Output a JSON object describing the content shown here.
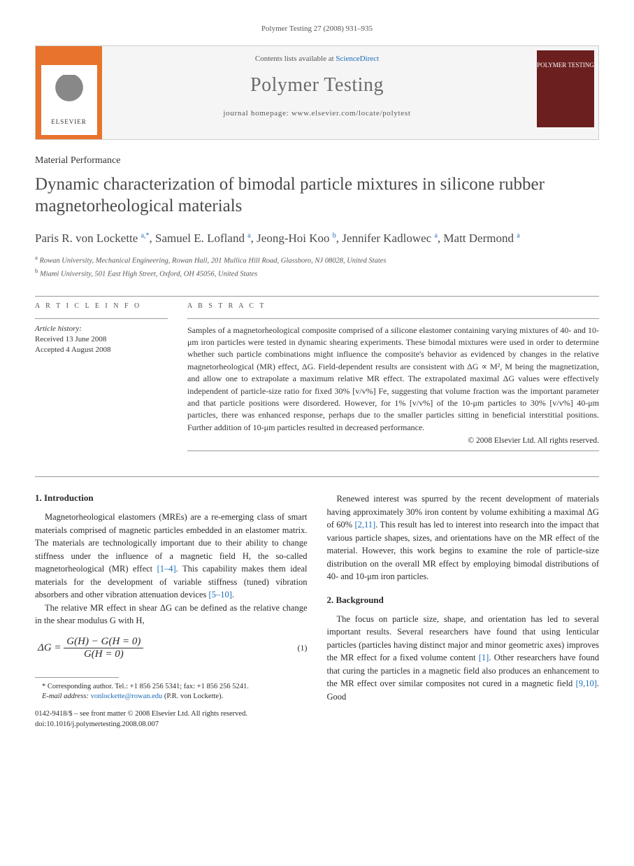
{
  "header": {
    "citation": "Polymer Testing 27 (2008) 931–935"
  },
  "banner": {
    "contents_prefix": "Contents lists available at ",
    "contents_link": "ScienceDirect",
    "journal_name": "Polymer Testing",
    "homepage": "journal homepage: www.elsevier.com/locate/polytest",
    "publisher": "ELSEVIER",
    "cover_text": "POLYMER TESTING"
  },
  "article": {
    "type": "Material Performance",
    "title": "Dynamic characterization of bimodal particle mixtures in silicone rubber magnetorheological materials",
    "authors_html": "Paris R. von Lockette <sup>a,*</sup>, Samuel E. Lofland <sup>a</sup>, Jeong-Hoi Koo <sup>b</sup>, Jennifer Kadlowec <sup>a</sup>, Matt Dermond <sup>a</sup>",
    "affiliations": [
      "a Rowan University, Mechanical Engineering, Rowan Hall, 201 Mullica Hill Road, Glassboro, NJ 08028, United States",
      "b Miami University, 501 East High Street, Oxford, OH 45056, United States"
    ]
  },
  "info": {
    "header": "A R T I C L E   I N F O",
    "history_label": "Article history:",
    "received": "Received 13 June 2008",
    "accepted": "Accepted 4 August 2008"
  },
  "abstract": {
    "header": "A B S T R A C T",
    "text": "Samples of a magnetorheological composite comprised of a silicone elastomer containing varying mixtures of 40- and 10-μm iron particles were tested in dynamic shearing experiments. These bimodal mixtures were used in order to determine whether such particle combinations might influence the composite's behavior as evidenced by changes in the relative magnetorheological (MR) effect, ΔG. Field-dependent results are consistent with ΔG ∝ M², M being the magnetization, and allow one to extrapolate a maximum relative MR effect. The extrapolated maximal ΔG values were effectively independent of particle-size ratio for fixed 30% [v/v%] Fe, suggesting that volume fraction was the important parameter and that particle positions were disordered. However, for 1% [v/v%] of the 10-μm particles to 30% [v/v%] 40-μm particles, there was enhanced response, perhaps due to the smaller particles sitting in beneficial interstitial positions. Further addition of 10-μm particles resulted in decreased performance.",
    "copyright": "© 2008 Elsevier Ltd. All rights reserved."
  },
  "body": {
    "sec1_title": "1.  Introduction",
    "sec1_p1": "Magnetorheological elastomers (MREs) are a re-emerging class of smart materials comprised of magnetic particles embedded in an elastomer matrix. The materials are technologically important due to their ability to change stiffness under the influence of a magnetic field H, the so-called magnetorheological (MR) effect [1–4]. This capability makes them ideal materials for the development of variable stiffness (tuned) vibration absorbers and other vibration attenuation devices [5–10].",
    "sec1_p2": "The relative MR effect in shear ΔG can be defined as the relative change in the shear modulus G with H,",
    "equation": "ΔG =  (G(H) − G(H = 0)) / G(H = 0)",
    "eq_num": "(1)",
    "sec1_p3": "Renewed interest was spurred by the recent development of materials having approximately 30% iron content by volume exhibiting a maximal ΔG of 60% [2,11]. This result has led to interest into research into the impact that various particle shapes, sizes, and orientations have on the MR effect of the material. However, this work begins to examine the role of particle-size distribution on the overall MR effect by employing bimodal distributions of 40- and 10-μm iron particles.",
    "sec2_title": "2.  Background",
    "sec2_p1": "The focus on particle size, shape, and orientation has led to several important results. Several researchers have found that using lenticular particles (particles having distinct major and minor geometric axes) improves the MR effect for a fixed volume content [1]. Other researchers have found that curing the particles in a magnetic field also produces an enhancement to the MR effect over similar composites not cured in a magnetic field [9,10]. Good"
  },
  "footnote": {
    "corresponding": "* Corresponding author. Tel.: +1 856 256 5341; fax: +1 856 256 5241.",
    "email_label": "E-mail address:",
    "email": "vonlockette@rowan.edu",
    "email_suffix": "(P.R. von Lockette).",
    "doi": "0142-9418/$ – see front matter © 2008 Elsevier Ltd. All rights reserved.",
    "doi2": "doi:10.1016/j.polymertesting.2008.08.007"
  },
  "colors": {
    "link": "#1a6cb8",
    "orange": "#e8732c",
    "cover": "#6b1f1f",
    "text": "#2a2a2a"
  }
}
